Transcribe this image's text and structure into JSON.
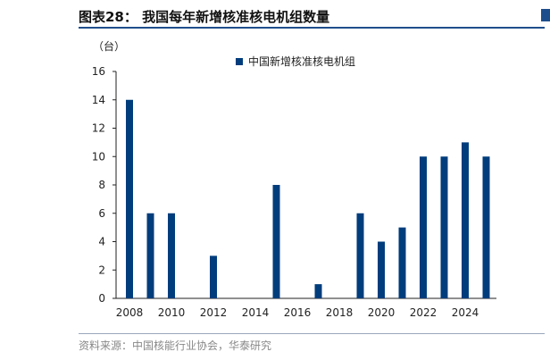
{
  "header": {
    "title": "图表28：  我国每年新增核准核电机组数量"
  },
  "footer": {
    "source": "资料来源：中国核能行业协会，华泰研究"
  },
  "colors": {
    "bar": "#003D7C",
    "rule": "#1f4e8c"
  },
  "chart_data": {
    "type": "bar",
    "title": "",
    "ylabel": "（台）",
    "xlabel": "",
    "ylim": [
      0,
      16
    ],
    "yticks": [
      0,
      2,
      4,
      6,
      8,
      10,
      12,
      14,
      16
    ],
    "xlim": [
      2008,
      2025
    ],
    "xticks": [
      2008,
      2010,
      2012,
      2014,
      2016,
      2018,
      2020,
      2022,
      2024
    ],
    "legend_position": "top-center",
    "series": [
      {
        "name": "中国新增核准核电机组",
        "x": [
          2008,
          2009,
          2010,
          2011,
          2012,
          2013,
          2014,
          2015,
          2016,
          2017,
          2018,
          2019,
          2020,
          2021,
          2022,
          2023,
          2024,
          2025
        ],
        "values": [
          14,
          6,
          6,
          0,
          3,
          0,
          0,
          8,
          0,
          1,
          0,
          6,
          4,
          5,
          10,
          10,
          11,
          10
        ]
      }
    ]
  }
}
